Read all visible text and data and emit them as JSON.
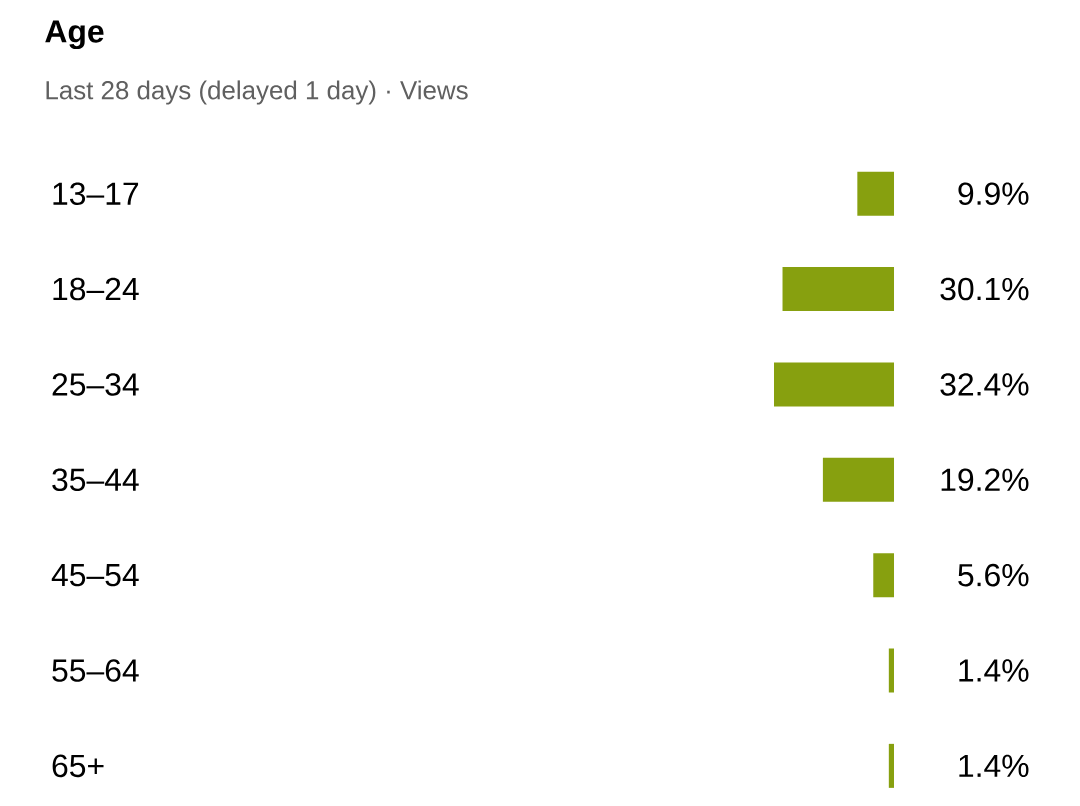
{
  "chart_data": {
    "type": "bar",
    "orientation": "horizontal",
    "title": "Age",
    "subtitle": "Last 28 days (delayed 1 day) · Views",
    "categories": [
      "13–17",
      "18–24",
      "25–34",
      "35–44",
      "45–54",
      "55–64",
      "65+"
    ],
    "values": [
      9.9,
      30.1,
      32.4,
      19.2,
      5.6,
      1.4,
      1.4
    ],
    "value_labels": [
      "9.9%",
      "30.1%",
      "32.4%",
      "19.2%",
      "5.6%",
      "1.4%",
      "1.4%"
    ],
    "color": "#87a00f",
    "tick_labels": "y"
  }
}
